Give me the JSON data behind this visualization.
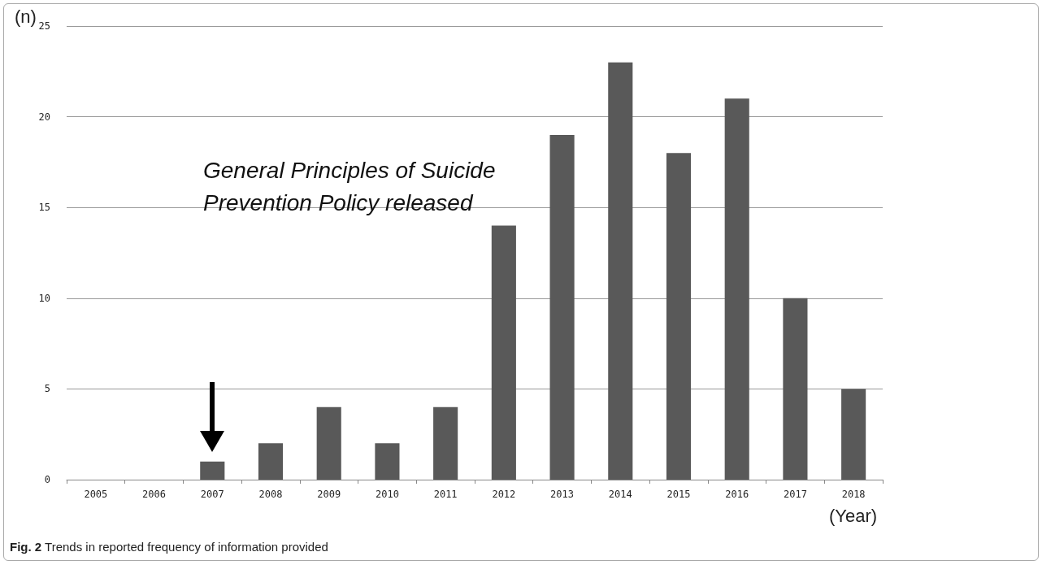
{
  "chart_data": {
    "type": "bar",
    "ylabel": "(n)",
    "xlabel": "(Year)",
    "categories": [
      "2005",
      "2006",
      "2007",
      "2008",
      "2009",
      "2010",
      "2011",
      "2012",
      "2013",
      "2014",
      "2015",
      "2016",
      "2017",
      "2018"
    ],
    "values": [
      0,
      0,
      1,
      2,
      4,
      2,
      4,
      14,
      19,
      23,
      18,
      21,
      10,
      5
    ],
    "color": "#595959",
    "ylim": [
      0,
      25
    ],
    "yticks": [
      0,
      5,
      10,
      15,
      20,
      25
    ],
    "grid": "y",
    "annotations": [
      "General Principles of Suicide Prevention Policy released",
      "Fig. 2 Trends in reported frequency of information provided"
    ]
  }
}
